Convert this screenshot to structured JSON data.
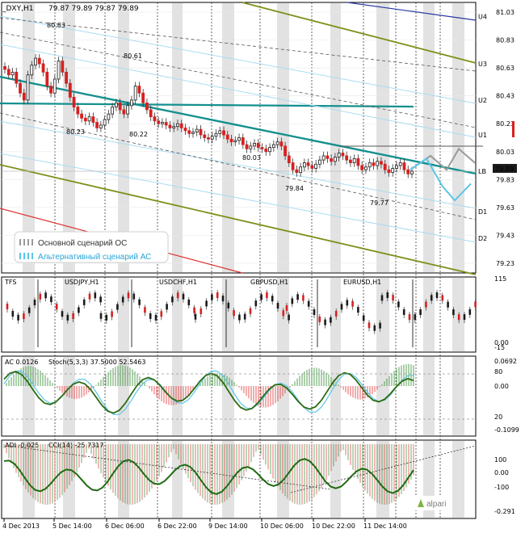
{
  "chart_data": {
    "type": "line",
    "title": "_DXY,H1",
    "ohlc_text": "79.87 79.89 79.87 79.89",
    "price_axis": {
      "labels": [
        "81.03",
        "80.83",
        "80.63",
        "80.43",
        "80.23",
        "80.03",
        "79.83",
        "79.63",
        "79.43",
        "79.23"
      ],
      "ylim": [
        79.16,
        81.1
      ]
    },
    "levels": [
      {
        "name": "U4",
        "value": 81.0
      },
      {
        "name": "U3",
        "value": 80.66
      },
      {
        "name": "U2",
        "value": 80.4
      },
      {
        "name": "U1",
        "value": 80.15
      },
      {
        "name": "LB",
        "value": 79.89
      },
      {
        "name": "D1",
        "value": 79.6
      },
      {
        "name": "D2",
        "value": 79.41
      }
    ],
    "current_price": "79.89",
    "peak_labels": [
      "80.83",
      "80.61",
      "80.23",
      "80.22",
      "80.03",
      "79.84",
      "79.77"
    ],
    "legend": {
      "main": "Основной сценарий ОС",
      "alt": "Альтернативный сценарий АС"
    },
    "close_series": [
      80.62,
      80.58,
      80.6,
      80.52,
      80.45,
      80.4,
      80.58,
      80.65,
      80.7,
      80.66,
      80.6,
      80.5,
      80.45,
      80.55,
      80.68,
      80.6,
      80.52,
      80.42,
      80.35,
      80.3,
      80.27,
      80.25,
      80.28,
      80.24,
      80.2,
      80.22,
      80.26,
      80.3,
      80.35,
      80.38,
      80.33,
      80.3,
      80.36,
      80.4,
      80.5,
      80.45,
      80.38,
      80.33,
      80.28,
      80.25,
      80.23,
      80.24,
      80.22,
      80.2,
      80.21,
      80.23,
      80.2,
      80.18,
      80.16,
      80.17,
      80.19,
      80.15,
      80.13,
      80.12,
      80.14,
      80.16,
      80.18,
      80.15,
      80.12,
      80.1,
      80.11,
      80.13,
      80.08,
      80.05,
      80.07,
      80.09,
      80.06,
      80.05,
      80.03,
      80.06,
      80.08,
      80.1,
      80.07,
      80.0,
      79.95,
      79.9,
      79.88,
      79.92,
      79.95,
      79.93,
      79.91,
      79.94,
      79.97,
      80.0,
      79.98,
      79.96,
      79.99,
      80.02,
      80.0,
      79.97,
      79.95,
      79.98,
      79.93,
      79.9,
      79.92,
      79.95,
      79.93,
      79.96,
      79.94,
      79.9,
      79.88,
      79.91,
      79.93,
      79.95,
      79.9,
      79.87,
      79.89
    ],
    "scenario_main": [
      [
        0,
        79.9
      ],
      [
        5,
        80.0
      ],
      [
        9,
        79.9
      ],
      [
        12,
        80.05
      ],
      [
        16,
        79.95
      ]
    ],
    "scenario_alt": [
      [
        0,
        79.9
      ],
      [
        4,
        79.98
      ],
      [
        8,
        79.78
      ],
      [
        11,
        79.68
      ],
      [
        15,
        79.8
      ]
    ],
    "subwindows": [
      {
        "id": "tfs",
        "label": "TFS",
        "pairs": [
          "USDJPY,H1",
          "USDCHF,H1",
          "GBPUSD,H1",
          "EURUSD,H1"
        ],
        "scale": [
          "115",
          "0.00",
          "-15"
        ]
      },
      {
        "id": "ac",
        "label": "AC 0.0126",
        "label2": "Stoch(5,3,3) 37.5000 52.5463",
        "scale": [
          "0.0692",
          "80",
          "0.00",
          "20",
          "-0.1099"
        ]
      },
      {
        "id": "adi",
        "label": "ADI -0.025",
        "label2": "CCI(14) -25.7317",
        "scale": [
          "100",
          "0.00",
          "-100",
          "-0.291"
        ]
      }
    ],
    "time_labels": [
      "4 Dec 2013",
      "5 Dec 14:00",
      "6 Dec 06:00",
      "6 Dec 22:00",
      "9 Dec 14:00",
      "10 Dec 06:00",
      "10 Dec 22:00",
      "11 Dec 14:00"
    ],
    "watermark": "alpari"
  }
}
